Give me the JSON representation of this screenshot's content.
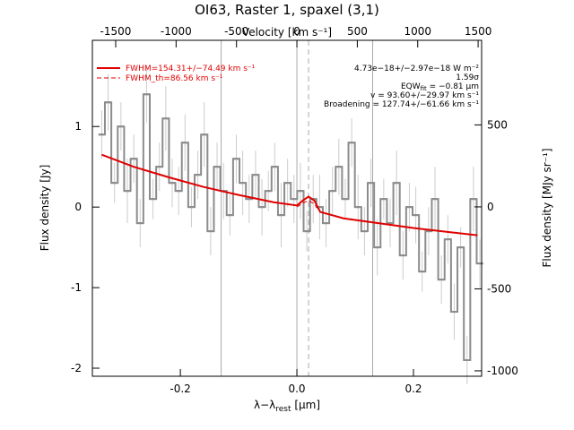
{
  "chart_data": {
    "type": "line",
    "title": "OI63, Raster 1, spaxel (3,1)",
    "x_label": {
      "main": "λ−λ",
      "sub": "rest",
      "rest": " [μm]"
    },
    "x2_label": "Velocity [km s⁻¹]",
    "y_label": "Flux density [Jy]",
    "y2_label": "Flux density [MJy sr⁻¹]",
    "xlim": [
      -0.351,
      0.317
    ],
    "xticks": [
      -0.2,
      {
        "value": 0,
        "label": "0.0"
      },
      0.2
    ],
    "x2lim": [
      -1693,
      1529
    ],
    "x2ticks": [
      -1500,
      -1000,
      -500,
      0,
      500,
      1000,
      1500
    ],
    "ylim": [
      -2.1,
      2.07
    ],
    "yticks": [
      -2,
      -1,
      0,
      1
    ],
    "y2lim": [
      -1033,
      1016
    ],
    "y2ticks": [
      -1000,
      -500,
      0,
      500
    ],
    "vlines": [
      -0.13,
      0.0,
      0.13
    ],
    "dashed_vline": 0.02,
    "series": [
      {
        "name": "data",
        "color": "#8c8c8c",
        "x": [
          -0.335,
          -0.324,
          -0.313,
          -0.302,
          -0.291,
          -0.28,
          -0.269,
          -0.258,
          -0.247,
          -0.236,
          -0.225,
          -0.214,
          -0.203,
          -0.192,
          -0.181,
          -0.17,
          -0.159,
          -0.148,
          -0.137,
          -0.126,
          -0.115,
          -0.104,
          -0.093,
          -0.082,
          -0.071,
          -0.06,
          -0.049,
          -0.038,
          -0.027,
          -0.016,
          -0.005,
          0.006,
          0.017,
          0.028,
          0.039,
          0.05,
          0.061,
          0.072,
          0.083,
          0.094,
          0.105,
          0.116,
          0.127,
          0.138,
          0.149,
          0.16,
          0.171,
          0.182,
          0.193,
          0.204,
          0.215,
          0.226,
          0.237,
          0.248,
          0.259,
          0.27,
          0.281,
          0.292,
          0.303,
          0.314
        ],
        "values": [
          0.9,
          1.3,
          0.3,
          1.0,
          0.2,
          0.6,
          -0.2,
          1.4,
          0.1,
          0.5,
          1.1,
          0.3,
          0.2,
          0.8,
          0.0,
          0.4,
          0.9,
          -0.3,
          0.5,
          0.2,
          -0.1,
          0.6,
          0.3,
          0.1,
          0.4,
          0.0,
          0.2,
          0.5,
          -0.1,
          0.3,
          0.1,
          0.2,
          -0.3,
          0.1,
          0.0,
          -0.2,
          0.2,
          0.5,
          0.1,
          0.8,
          0.0,
          -0.3,
          0.3,
          -0.5,
          0.1,
          -0.2,
          0.3,
          -0.6,
          0.0,
          -0.1,
          -0.8,
          -0.3,
          0.1,
          -0.9,
          -0.4,
          -1.3,
          -0.5,
          -1.9,
          0.1,
          -0.7
        ],
        "errors": [
          0.3,
          0.35,
          0.25,
          0.3,
          0.4,
          0.3,
          0.3,
          0.35,
          0.25,
          0.3,
          0.4,
          0.3,
          0.3,
          0.35,
          0.25,
          0.3,
          0.4,
          0.3,
          0.3,
          0.35,
          0.25,
          0.3,
          0.4,
          0.3,
          0.3,
          0.35,
          0.25,
          0.3,
          0.4,
          0.3,
          0.3,
          0.35,
          0.25,
          0.3,
          0.4,
          0.3,
          0.3,
          0.35,
          0.25,
          0.3,
          0.4,
          0.3,
          0.3,
          0.35,
          0.25,
          0.3,
          0.4,
          0.3,
          0.3,
          0.35,
          0.25,
          0.3,
          0.4,
          0.3,
          0.3,
          0.35,
          0.25,
          0.3,
          0.4,
          0.3
        ]
      },
      {
        "name": "FWHM=154.31+/−74.49 km s⁻¹",
        "color": "#e00000",
        "x": [
          -0.335,
          -0.28,
          -0.22,
          -0.16,
          -0.1,
          -0.04,
          0.0,
          0.01,
          0.02,
          0.03,
          0.04,
          0.08,
          0.14,
          0.2,
          0.26,
          0.31
        ],
        "values": [
          0.65,
          0.5,
          0.37,
          0.25,
          0.15,
          0.06,
          0.02,
          0.08,
          0.13,
          0.08,
          -0.06,
          -0.14,
          -0.2,
          -0.26,
          -0.31,
          -0.35
        ]
      },
      {
        "name": "FWHM_th=86.56 km s⁻¹",
        "color": "#e00000",
        "dashed": true,
        "x": [
          0.0,
          0.01,
          0.02,
          0.03,
          0.04
        ],
        "values": [
          0.0,
          0.05,
          0.08,
          0.04,
          -0.06
        ]
      }
    ],
    "annotations": [
      {
        "text": "4.73e−18+/−2.97e−18 W m⁻²"
      },
      {
        "text": "1.59σ"
      },
      {
        "text": "EQW",
        "sub": "fit",
        "rest": " = −0.81 μm"
      },
      {
        "text": "v = 93.60+/−29.97 km s⁻¹"
      },
      {
        "text": "Broadening = 127.74+/−61.66 km s⁻¹"
      }
    ]
  }
}
